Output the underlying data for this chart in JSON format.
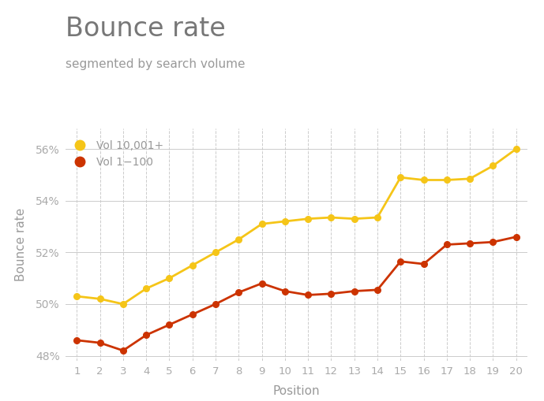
{
  "title": "Bounce rate",
  "subtitle": "segmented by search volume",
  "xlabel": "Position",
  "ylabel": "Bounce rate",
  "positions": [
    1,
    2,
    3,
    4,
    5,
    6,
    7,
    8,
    9,
    10,
    11,
    12,
    13,
    14,
    15,
    16,
    17,
    18,
    19,
    20
  ],
  "vol_high": [
    50.3,
    50.2,
    50.0,
    50.6,
    51.0,
    51.5,
    52.0,
    52.5,
    53.1,
    53.2,
    53.3,
    53.35,
    53.3,
    53.35,
    54.9,
    54.8,
    54.8,
    54.85,
    55.35,
    56.0
  ],
  "vol_low": [
    48.6,
    48.5,
    48.2,
    48.8,
    49.2,
    49.6,
    50.0,
    50.45,
    50.8,
    50.5,
    50.35,
    50.4,
    50.5,
    50.55,
    51.65,
    51.55,
    52.3,
    52.35,
    52.4,
    52.6
  ],
  "color_high": "#F5C518",
  "color_low": "#CC3300",
  "ylim_min": 47.8,
  "ylim_max": 56.8,
  "yticks": [
    48,
    50,
    52,
    54,
    56
  ],
  "background_color": "#ffffff",
  "grid_color": "#cccccc",
  "title_color": "#777777",
  "subtitle_color": "#999999",
  "axis_label_color": "#999999",
  "tick_label_color": "#aaaaaa",
  "title_fontsize": 24,
  "subtitle_fontsize": 11,
  "legend_label": [
    "Vol 10,001+",
    "Vol 1−100"
  ]
}
